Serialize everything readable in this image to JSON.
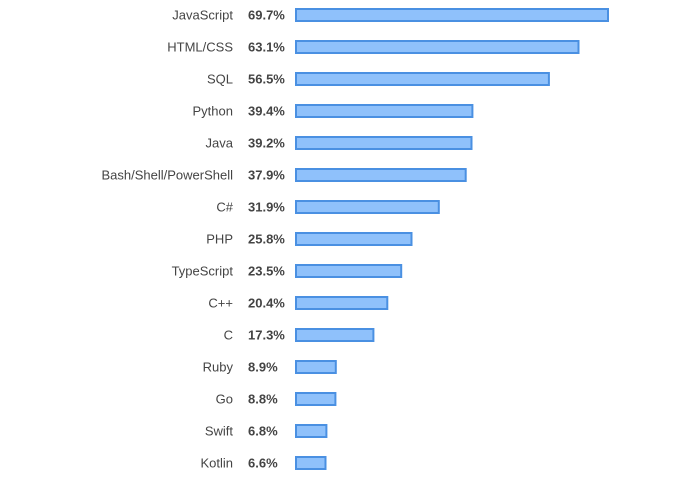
{
  "chart_data": {
    "type": "bar",
    "orientation": "horizontal",
    "categories": [
      "JavaScript",
      "HTML/CSS",
      "SQL",
      "Python",
      "Java",
      "Bash/Shell/PowerShell",
      "C#",
      "PHP",
      "TypeScript",
      "C++",
      "C",
      "Ruby",
      "Go",
      "Swift",
      "Kotlin"
    ],
    "values": [
      69.7,
      63.1,
      56.5,
      39.4,
      39.2,
      37.9,
      31.9,
      25.8,
      23.5,
      20.4,
      17.3,
      8.9,
      8.8,
      6.8,
      6.6
    ],
    "value_labels": [
      "69.7%",
      "63.1%",
      "56.5%",
      "39.4%",
      "39.2%",
      "37.9%",
      "31.9%",
      "25.8%",
      "23.5%",
      "20.4%",
      "17.3%",
      "8.9%",
      "8.8%",
      "6.8%",
      "6.6%"
    ],
    "unit": "%",
    "title": "",
    "xlabel": "",
    "ylabel": "",
    "grid": false,
    "legend": "none",
    "colors": {
      "bar_fill": "#8fc1fb",
      "bar_stroke": "#4a90e2",
      "text": "#444444"
    }
  }
}
